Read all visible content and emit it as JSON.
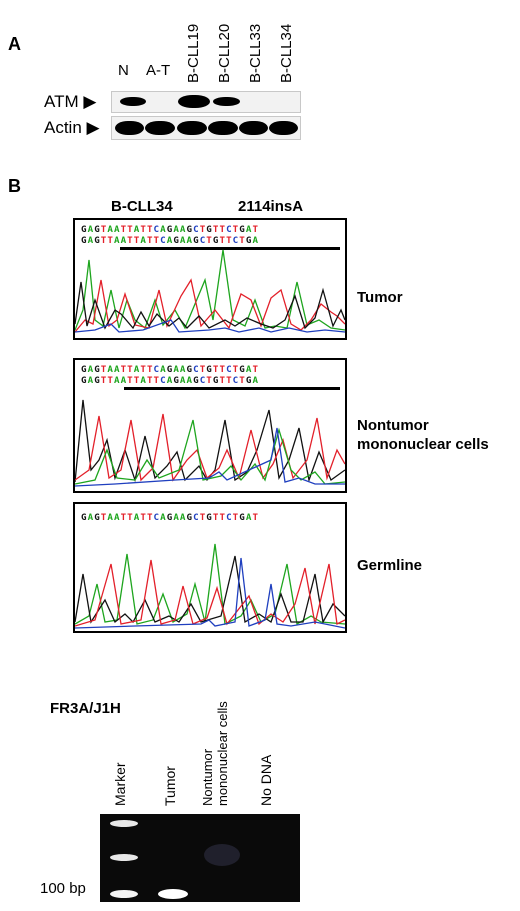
{
  "panel_a": {
    "letter": "A",
    "lanes": [
      "N",
      "A-T",
      "B-CLL19",
      "B-CLL20",
      "B-CLL33",
      "B-CLL34"
    ],
    "rows": [
      {
        "label": "ATM ▶",
        "present": [
          1,
          0,
          1,
          1,
          0,
          0
        ]
      },
      {
        "label": "Actin ▶",
        "present": [
          1,
          1,
          1,
          1,
          1,
          1
        ]
      }
    ]
  },
  "panel_b": {
    "letter": "B",
    "case_label": "B-CLL34",
    "mutation_label": "2114insA",
    "traces": [
      {
        "label_lines": [
          "Tumor"
        ],
        "seq_line1": "GAGTAATTATTCAGAAGCTGTTCTGAT",
        "seq_line2": "GAGTTAATTATTCAGAAGCTGTTCTGA",
        "underlined": true
      },
      {
        "label_lines": [
          "Nontumor",
          "mononuclear cells"
        ],
        "seq_line1": "GAGTAATTATTCAGAAGCTGTTCTGAT",
        "seq_line2": "GAGTTAATTATTCAGAAGCTGTTCTGA",
        "underlined": true
      },
      {
        "label_lines": [
          "Germline"
        ],
        "seq_line1": "GAGTAATTATTCAGAAGCTGTTCTGAT",
        "seq_line2": "",
        "underlined": false
      }
    ],
    "base_colors": {
      "A": "#1ea51e",
      "G": "#111111",
      "T": "#e3202a",
      "C": "#1f3fbf"
    }
  },
  "gel": {
    "title": "FR3A/J1H",
    "lanes": [
      "Marker",
      "Tumor",
      "Nontumor\nmononuclear cells",
      "No DNA"
    ],
    "size_label": "100 bp"
  }
}
